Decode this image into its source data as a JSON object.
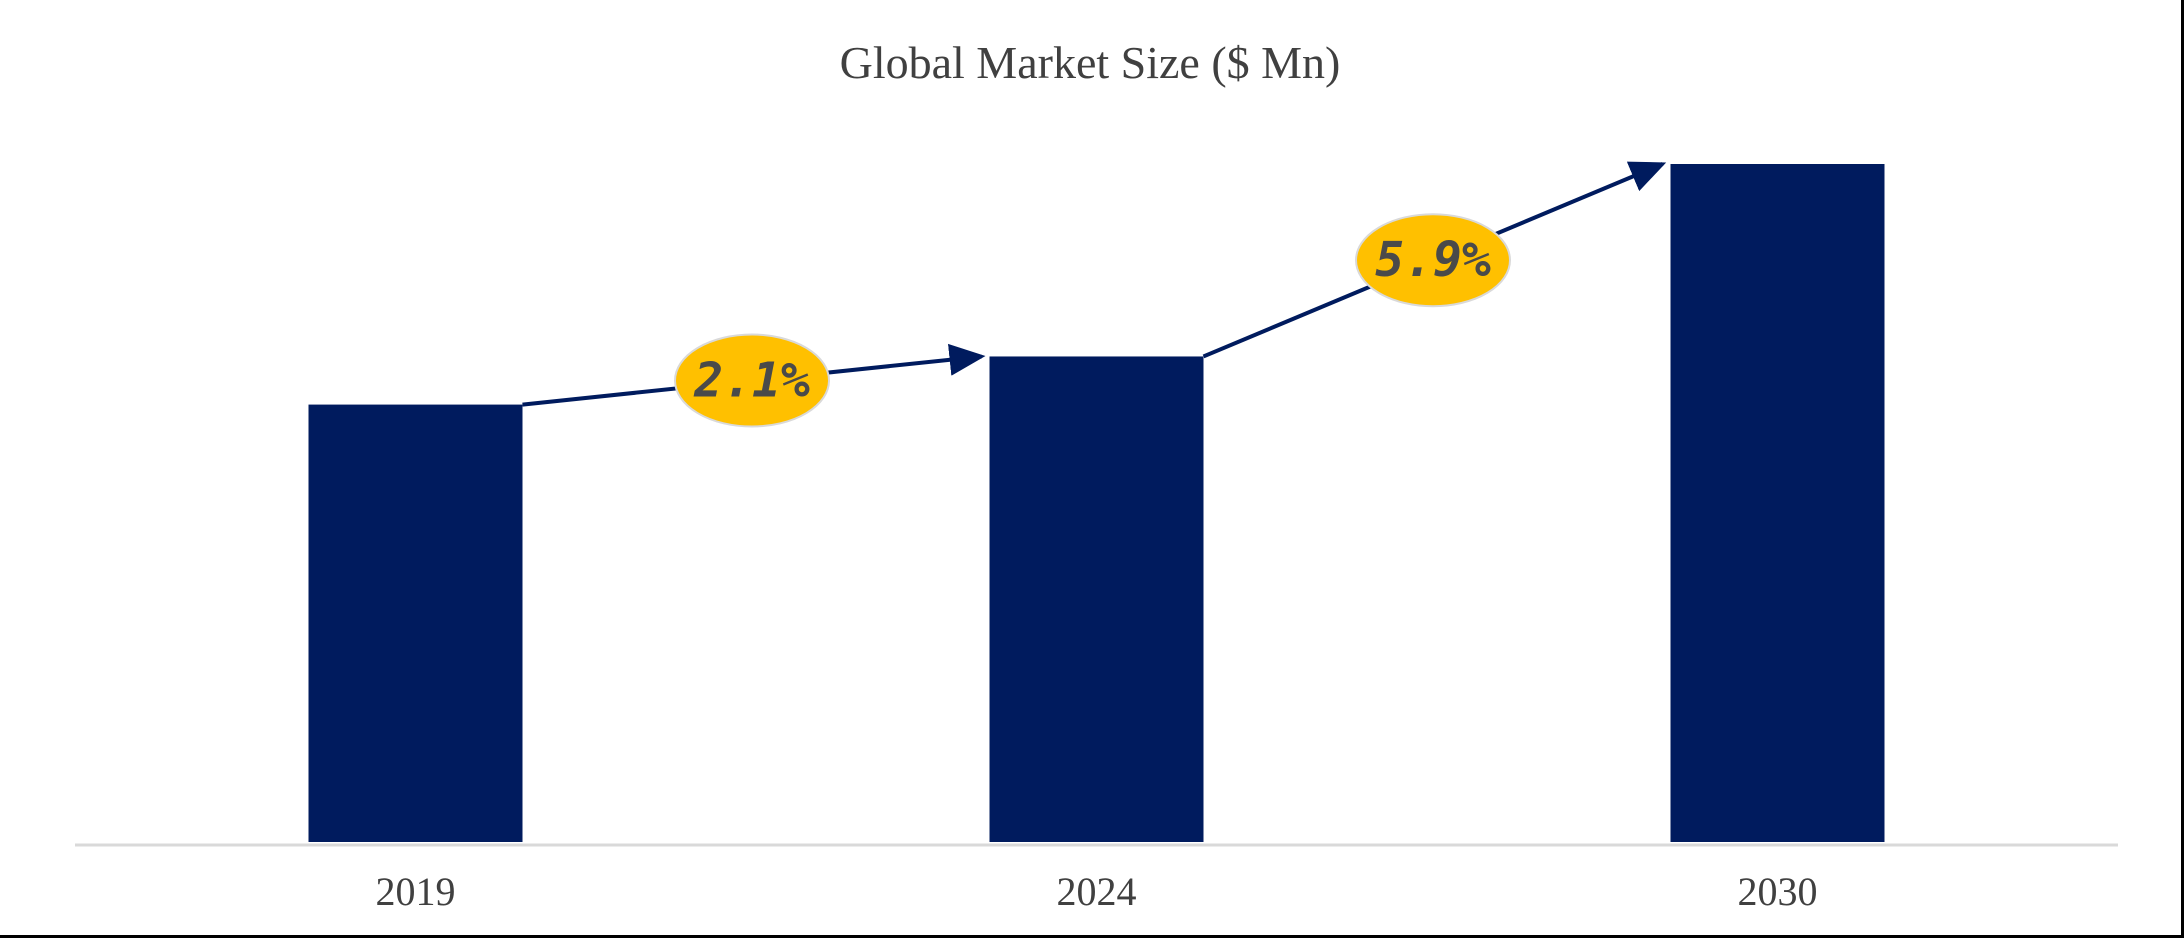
{
  "chart_data": {
    "type": "bar",
    "title": "Global Market Size ($ Mn)",
    "xlabel": "",
    "ylabel": "",
    "categories": [
      "2019",
      "2024",
      "2030"
    ],
    "values": [
      100,
      111,
      155
    ],
    "ylim": [
      0,
      160
    ],
    "grid": false,
    "legend": "none",
    "annotations": [
      {
        "label": "2.1%",
        "from": "2019",
        "to": "2024"
      },
      {
        "label": "5.9%",
        "from": "2024",
        "to": "2030"
      }
    ],
    "colors": {
      "bar": "#001b5e",
      "arrow": "#001b5e",
      "badge": "#ffc000",
      "axis": "#d9d9d9"
    }
  }
}
